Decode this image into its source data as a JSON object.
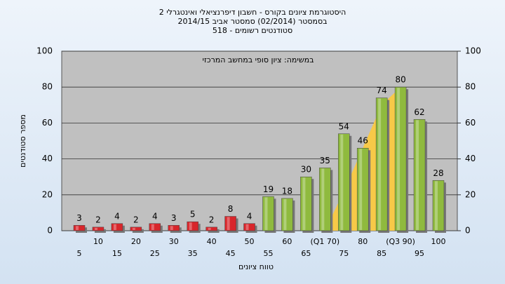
{
  "chart_data": {
    "type": "bar",
    "title": [
      "היסטוגרמת ציונים בקורס - חשבון דיפרנציאלי ואינטגרלי 2",
      "בסמסטר  (02/2014)  סמסטר אביב 2014/15",
      "סטודנטים רשומים - 518"
    ],
    "annotation": "במשימה: ציון סופי במחשב המרכזי",
    "x_label": "טווח ציונים",
    "y_label": "מספר סטודנטים",
    "categories": [
      "5",
      "10",
      "15",
      "20",
      "25",
      "30",
      "35",
      "40",
      "45",
      "50",
      "55",
      "60",
      "65",
      "(Q1 70)",
      "75",
      "80",
      "85",
      "(Q3 90)",
      "95",
      "100"
    ],
    "values": [
      3,
      2,
      4,
      2,
      4,
      3,
      5,
      2,
      8,
      4,
      19,
      18,
      30,
      35,
      54,
      46,
      74,
      80,
      62,
      28
    ],
    "colors": [
      "#d8262b",
      "#d8262b",
      "#d8262b",
      "#d8262b",
      "#d8262b",
      "#d8262b",
      "#d8262b",
      "#d8262b",
      "#d8262b",
      "#d8262b",
      "#8fba3e",
      "#8fba3e",
      "#8fba3e",
      "#8fba3e",
      "#8fba3e",
      "#8fba3e",
      "#8fba3e",
      "#8fba3e",
      "#8fba3e",
      "#8fba3e"
    ],
    "area": {
      "color": "#f7c948",
      "x": [
        70,
        75,
        80,
        85,
        90
      ],
      "values": [
        0,
        22,
        46,
        70,
        80
      ]
    },
    "ylim": [
      0,
      100
    ],
    "yticks": [
      0,
      20,
      40,
      60,
      80,
      100
    ],
    "y2lim": [
      0,
      100
    ],
    "y2ticks": [
      0,
      20,
      40,
      60,
      80,
      100
    ],
    "xlim": [
      5,
      100
    ],
    "grid": true
  }
}
